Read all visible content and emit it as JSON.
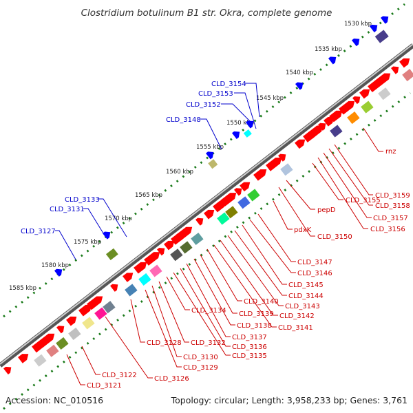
{
  "title": "Clostridium botulinum B1 str. Okra, complete genome",
  "footer": {
    "accession": "Accession: NC_010516",
    "summary": "Topology: circular; Length: 3,958,233 bp; Genes: 3,761"
  },
  "ruler_labels": [
    "1530 kbp",
    "1535 kbp",
    "1540 kbp",
    "1545 kbp",
    "1550 kbp",
    "1555 kbp",
    "1560 kbp",
    "1565 kbp",
    "1570 kbp",
    "1575 kbp",
    "1580 kbp",
    "1585 kbp"
  ],
  "gene_labels_blue": [
    "CLD_3154",
    "CLD_3153",
    "CLD_3152",
    "CLD_3148",
    "CLD_3133",
    "CLD_3131",
    "CLD_3127"
  ],
  "gene_labels_red": [
    "rnz",
    "CLD_3159",
    "CLD_3158",
    "CLD_3157",
    "CLD_3156",
    "CLD_3155",
    "pepD",
    "pdxK",
    "CLD_3150",
    "CLD_3147",
    "CLD_3146",
    "CLD_3145",
    "CLD_3144",
    "CLD_3143",
    "CLD_3142",
    "CLD_3141",
    "CLD_3140",
    "CLD_3139",
    "CLD_3138",
    "CLD_3137",
    "CLD_3136",
    "CLD_3135",
    "CLD_3134",
    "CLD_3132",
    "CLD_3130",
    "CLD_3129",
    "CLD_3128",
    "CLD_3126",
    "CLD_3122",
    "CLD_3121"
  ],
  "colors": {
    "forward_gene": "#ff0000",
    "reverse_gene": "#0000ff",
    "ruler_dots": "#1a7a1a",
    "backbone": "#888888",
    "label_red": "#cc0000",
    "label_blue": "#0000cc"
  }
}
